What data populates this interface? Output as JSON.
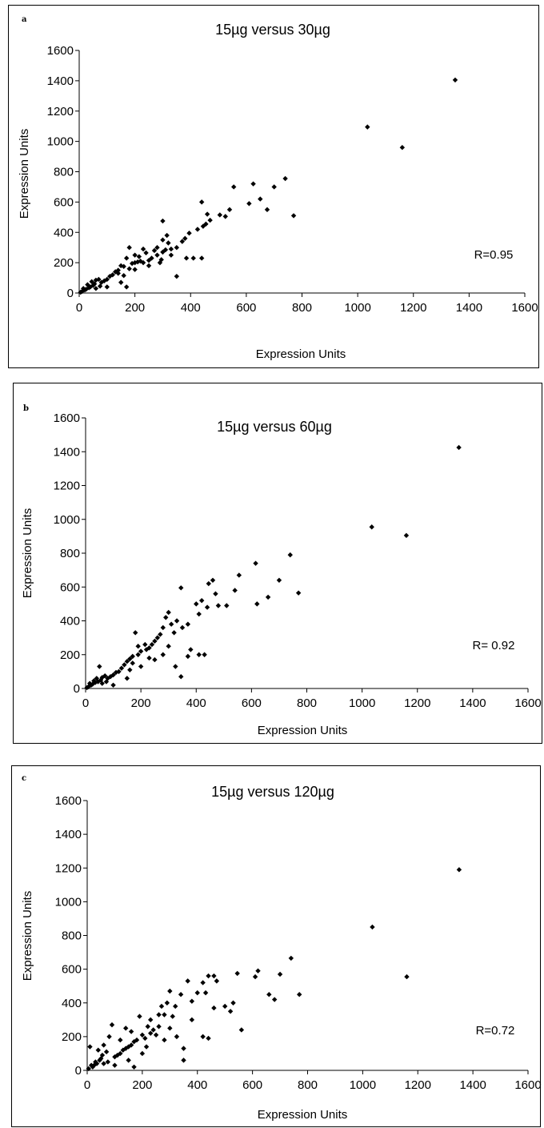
{
  "chart_data": [
    {
      "type": "scatter",
      "panel_label": "a",
      "title": "15µg versus 30µg",
      "xlabel": "Expression Units",
      "ylabel": "Expression Units",
      "xlim": [
        0,
        1600
      ],
      "ylim": [
        0,
        1600
      ],
      "xticks": [
        "0",
        "200",
        "400",
        "600",
        "800",
        "1000",
        "1200",
        "1400",
        "1600"
      ],
      "yticks": [
        "0",
        "200",
        "400",
        "600",
        "800",
        "1000",
        "1200",
        "1400",
        "1600"
      ],
      "annotation": "R=0.95",
      "grid": false,
      "marker": "diamond",
      "color": "#000000",
      "points": [
        [
          1350,
          1405
        ],
        [
          1035,
          1095
        ],
        [
          1160,
          960
        ],
        [
          740,
          755
        ],
        [
          700,
          700
        ],
        [
          625,
          720
        ],
        [
          555,
          700
        ],
        [
          610,
          590
        ],
        [
          650,
          620
        ],
        [
          675,
          550
        ],
        [
          770,
          510
        ],
        [
          505,
          515
        ],
        [
          525,
          505
        ],
        [
          540,
          550
        ],
        [
          460,
          520
        ],
        [
          440,
          600
        ],
        [
          470,
          480
        ],
        [
          445,
          440
        ],
        [
          455,
          455
        ],
        [
          425,
          420
        ],
        [
          395,
          395
        ],
        [
          380,
          360
        ],
        [
          370,
          340
        ],
        [
          350,
          300
        ],
        [
          330,
          290
        ],
        [
          310,
          285
        ],
        [
          300,
          270
        ],
        [
          320,
          330
        ],
        [
          300,
          350
        ],
        [
          280,
          300
        ],
        [
          270,
          280
        ],
        [
          290,
          200
        ],
        [
          250,
          215
        ],
        [
          230,
          200
        ],
        [
          220,
          210
        ],
        [
          210,
          205
        ],
        [
          200,
          200
        ],
        [
          190,
          195
        ],
        [
          180,
          300
        ],
        [
          170,
          230
        ],
        [
          160,
          175
        ],
        [
          150,
          180
        ],
        [
          140,
          150
        ],
        [
          130,
          140
        ],
        [
          120,
          120
        ],
        [
          110,
          110
        ],
        [
          100,
          90
        ],
        [
          90,
          80
        ],
        [
          80,
          70
        ],
        [
          70,
          90
        ],
        [
          60,
          85
        ],
        [
          55,
          60
        ],
        [
          50,
          50
        ],
        [
          45,
          75
        ],
        [
          40,
          40
        ],
        [
          35,
          35
        ],
        [
          30,
          55
        ],
        [
          25,
          25
        ],
        [
          20,
          20
        ],
        [
          15,
          30
        ],
        [
          10,
          10
        ],
        [
          5,
          5
        ],
        [
          60,
          30
        ],
        [
          75,
          45
        ],
        [
          100,
          40
        ],
        [
          150,
          70
        ],
        [
          170,
          40
        ],
        [
          180,
          160
        ],
        [
          200,
          155
        ],
        [
          215,
          240
        ],
        [
          240,
          265
        ],
        [
          260,
          230
        ],
        [
          280,
          250
        ],
        [
          295,
          220
        ],
        [
          315,
          380
        ],
        [
          300,
          475
        ],
        [
          330,
          250
        ],
        [
          350,
          110
        ],
        [
          385,
          230
        ],
        [
          410,
          230
        ],
        [
          440,
          230
        ],
        [
          200,
          250
        ],
        [
          250,
          180
        ],
        [
          160,
          115
        ],
        [
          140,
          130
        ],
        [
          230,
          290
        ]
      ]
    },
    {
      "type": "scatter",
      "panel_label": "b",
      "title": "15µg versus 60µg",
      "xlabel": "Expression Units",
      "ylabel": "Expression Units",
      "xlim": [
        0,
        1600
      ],
      "ylim": [
        0,
        1600
      ],
      "xticks": [
        "0",
        "200",
        "400",
        "600",
        "800",
        "1000",
        "1200",
        "1400",
        "1600"
      ],
      "yticks": [
        "0",
        "200",
        "400",
        "600",
        "800",
        "1000",
        "1200",
        "1400",
        "1600"
      ],
      "annotation": "R= 0.92",
      "grid": false,
      "marker": "diamond",
      "color": "#000000",
      "points": [
        [
          1350,
          1425
        ],
        [
          1035,
          955
        ],
        [
          1160,
          905
        ],
        [
          740,
          790
        ],
        [
          615,
          740
        ],
        [
          700,
          640
        ],
        [
          555,
          670
        ],
        [
          540,
          580
        ],
        [
          660,
          540
        ],
        [
          620,
          500
        ],
        [
          770,
          565
        ],
        [
          510,
          490
        ],
        [
          480,
          490
        ],
        [
          460,
          640
        ],
        [
          445,
          620
        ],
        [
          470,
          560
        ],
        [
          420,
          520
        ],
        [
          440,
          480
        ],
        [
          400,
          500
        ],
        [
          410,
          440
        ],
        [
          370,
          380
        ],
        [
          345,
          595
        ],
        [
          330,
          400
        ],
        [
          350,
          360
        ],
        [
          320,
          330
        ],
        [
          300,
          450
        ],
        [
          290,
          420
        ],
        [
          310,
          380
        ],
        [
          280,
          360
        ],
        [
          270,
          320
        ],
        [
          250,
          280
        ],
        [
          240,
          260
        ],
        [
          230,
          240
        ],
        [
          220,
          230
        ],
        [
          200,
          220
        ],
        [
          190,
          200
        ],
        [
          180,
          330
        ],
        [
          170,
          190
        ],
        [
          160,
          175
        ],
        [
          150,
          160
        ],
        [
          140,
          140
        ],
        [
          130,
          120
        ],
        [
          120,
          100
        ],
        [
          110,
          95
        ],
        [
          100,
          80
        ],
        [
          90,
          70
        ],
        [
          80,
          60
        ],
        [
          70,
          75
        ],
        [
          60,
          65
        ],
        [
          55,
          50
        ],
        [
          50,
          130
        ],
        [
          45,
          40
        ],
        [
          40,
          60
        ],
        [
          35,
          35
        ],
        [
          30,
          45
        ],
        [
          25,
          25
        ],
        [
          20,
          20
        ],
        [
          15,
          30
        ],
        [
          10,
          10
        ],
        [
          5,
          5
        ],
        [
          60,
          30
        ],
        [
          75,
          40
        ],
        [
          100,
          20
        ],
        [
          150,
          60
        ],
        [
          170,
          150
        ],
        [
          200,
          130
        ],
        [
          215,
          260
        ],
        [
          250,
          170
        ],
        [
          280,
          200
        ],
        [
          300,
          250
        ],
        [
          325,
          130
        ],
        [
          345,
          70
        ],
        [
          370,
          190
        ],
        [
          410,
          200
        ],
        [
          430,
          200
        ],
        [
          260,
          300
        ],
        [
          230,
          180
        ],
        [
          160,
          110
        ],
        [
          190,
          250
        ],
        [
          380,
          230
        ]
      ]
    },
    {
      "type": "scatter",
      "panel_label": "c",
      "title": "15µg versus 120µg",
      "xlabel": "Expression Units",
      "ylabel": "Expression Units",
      "xlim": [
        0,
        1600
      ],
      "ylim": [
        0,
        1600
      ],
      "xticks": [
        "0",
        "200",
        "400",
        "600",
        "800",
        "1000",
        "1200",
        "1400",
        "1600"
      ],
      "yticks": [
        "0",
        "200",
        "400",
        "600",
        "800",
        "1000",
        "1200",
        "1400",
        "1600"
      ],
      "annotation": "R=0.72",
      "grid": false,
      "marker": "diamond",
      "color": "#000000",
      "points": [
        [
          1350,
          1190
        ],
        [
          1035,
          850
        ],
        [
          1160,
          555
        ],
        [
          740,
          665
        ],
        [
          700,
          570
        ],
        [
          620,
          590
        ],
        [
          545,
          575
        ],
        [
          610,
          555
        ],
        [
          660,
          450
        ],
        [
          680,
          420
        ],
        [
          770,
          450
        ],
        [
          560,
          240
        ],
        [
          520,
          350
        ],
        [
          530,
          400
        ],
        [
          460,
          560
        ],
        [
          440,
          560
        ],
        [
          470,
          530
        ],
        [
          420,
          520
        ],
        [
          400,
          460
        ],
        [
          430,
          460
        ],
        [
          380,
          410
        ],
        [
          365,
          530
        ],
        [
          340,
          450
        ],
        [
          320,
          380
        ],
        [
          300,
          470
        ],
        [
          290,
          400
        ],
        [
          310,
          320
        ],
        [
          280,
          330
        ],
        [
          270,
          380
        ],
        [
          260,
          260
        ],
        [
          240,
          240
        ],
        [
          230,
          220
        ],
        [
          220,
          260
        ],
        [
          210,
          190
        ],
        [
          200,
          210
        ],
        [
          190,
          320
        ],
        [
          180,
          180
        ],
        [
          170,
          170
        ],
        [
          160,
          150
        ],
        [
          150,
          140
        ],
        [
          140,
          130
        ],
        [
          130,
          120
        ],
        [
          120,
          100
        ],
        [
          110,
          90
        ],
        [
          100,
          80
        ],
        [
          90,
          270
        ],
        [
          80,
          200
        ],
        [
          70,
          110
        ],
        [
          60,
          150
        ],
        [
          55,
          90
        ],
        [
          50,
          70
        ],
        [
          45,
          60
        ],
        [
          40,
          120
        ],
        [
          35,
          40
        ],
        [
          30,
          50
        ],
        [
          25,
          30
        ],
        [
          20,
          20
        ],
        [
          15,
          30
        ],
        [
          10,
          140
        ],
        [
          5,
          10
        ],
        [
          60,
          40
        ],
        [
          75,
          50
        ],
        [
          100,
          30
        ],
        [
          150,
          60
        ],
        [
          170,
          20
        ],
        [
          200,
          100
        ],
        [
          215,
          140
        ],
        [
          250,
          210
        ],
        [
          280,
          180
        ],
        [
          300,
          250
        ],
        [
          325,
          200
        ],
        [
          350,
          130
        ],
        [
          350,
          60
        ],
        [
          380,
          300
        ],
        [
          420,
          200
        ],
        [
          440,
          190
        ],
        [
          460,
          370
        ],
        [
          500,
          380
        ],
        [
          260,
          330
        ],
        [
          230,
          300
        ],
        [
          160,
          230
        ],
        [
          140,
          250
        ],
        [
          120,
          180
        ]
      ]
    }
  ]
}
